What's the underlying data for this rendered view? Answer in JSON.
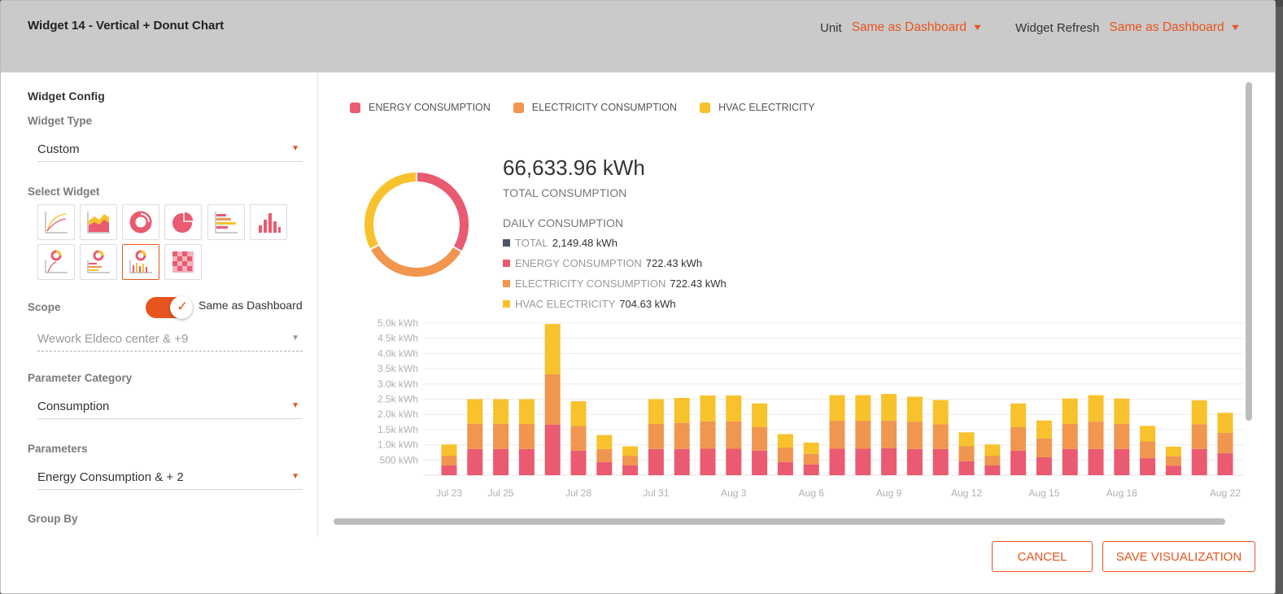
{
  "header": {
    "title": "Widget 14 - Vertical + Donut Chart",
    "unit_label": "Unit",
    "unit_value": "Same as Dashboard",
    "refresh_label": "Widget Refresh",
    "refresh_value": "Same as Dashboard"
  },
  "config": {
    "section_title": "Widget Config",
    "widget_type_label": "Widget Type",
    "widget_type_value": "Custom",
    "select_widget_label": "Select Widget",
    "widget_tiles": [
      "line-chart-icon",
      "area-chart-icon",
      "donut-chart-icon",
      "pie-chart-icon",
      "horizontal-bar-icon",
      "vertical-bar-icon",
      "donut-line-icon",
      "donut-horizontal-bar-icon",
      "donut-vertical-bar-icon",
      "heatmap-icon"
    ],
    "active_tile": 8,
    "scope_label": "Scope",
    "scope_toggle_on": true,
    "scope_toggle_text": "Same as Dashboard",
    "scope_value": "Wework Eldeco center & +9",
    "param_category_label": "Parameter Category",
    "param_category_value": "Consumption",
    "parameters_label": "Parameters",
    "parameters_value": "Energy Consumption & + 2",
    "group_by_label": "Group By"
  },
  "colors": {
    "accent": "#e8541e",
    "energy": "#ea5a70",
    "electricity": "#f0964f",
    "hvac": "#f7c22b",
    "total": "#4a5568"
  },
  "legend": [
    {
      "label": "ENERGY CONSUMPTION",
      "color": "#ea5a70"
    },
    {
      "label": "ELECTRICITY CONSUMPTION",
      "color": "#f0964f"
    },
    {
      "label": "HVAC ELECTRICITY",
      "color": "#f7c22b"
    }
  ],
  "summary": {
    "total_value": "66,633.96 kWh",
    "total_label": "TOTAL CONSUMPTION",
    "daily_label": "DAILY CONSUMPTION",
    "daily": [
      {
        "name": "TOTAL",
        "value": "2,149.48 kWh",
        "color": "#4a5568"
      },
      {
        "name": "ENERGY CONSUMPTION",
        "value": "722.43 kWh",
        "color": "#ea5a70"
      },
      {
        "name": "ELECTRICITY CONSUMPTION",
        "value": "722.43 kWh",
        "color": "#f0964f"
      },
      {
        "name": "HVAC ELECTRICITY",
        "value": "704.63 kWh",
        "color": "#f7c22b"
      }
    ]
  },
  "chart_data": [
    {
      "type": "pie",
      "donut": true,
      "labels": [
        "ENERGY CONSUMPTION",
        "ELECTRICITY CONSUMPTION",
        "HVAC ELECTRICITY"
      ],
      "values": [
        33.6,
        33.6,
        32.8
      ]
    },
    {
      "type": "bar",
      "stacked": true,
      "ylabel_unit": "kWh",
      "y_ticks": [
        "500 kWh",
        "1.0k kWh",
        "1.5k kWh",
        "2.0k kWh",
        "2.5k kWh",
        "3.0k kWh",
        "3.5k kWh",
        "4.0k kWh",
        "4.5k kWh",
        "5.0k kWh"
      ],
      "ylim": [
        0,
        5000
      ],
      "x_ticks": [
        {
          "label": "Jul 23",
          "index": 0
        },
        {
          "label": "Jul 25",
          "index": 2
        },
        {
          "label": "Jul 28",
          "index": 5
        },
        {
          "label": "Jul 31",
          "index": 8
        },
        {
          "label": "Aug 3",
          "index": 11
        },
        {
          "label": "Aug 6",
          "index": 14
        },
        {
          "label": "Aug 9",
          "index": 17
        },
        {
          "label": "Aug 12",
          "index": 20
        },
        {
          "label": "Aug 15",
          "index": 23
        },
        {
          "label": "Aug 18",
          "index": 26
        },
        {
          "label": "Aug 22",
          "index": 30
        }
      ],
      "grid": true,
      "series": [
        {
          "name": "ENERGY CONSUMPTION",
          "values": [
            320,
            860,
            860,
            860,
            1660,
            810,
            430,
            320,
            860,
            860,
            870,
            870,
            810,
            430,
            350,
            870,
            870,
            890,
            860,
            860,
            460,
            320,
            810,
            590,
            860,
            860,
            860,
            560,
            310,
            860,
            720
          ]
        },
        {
          "name": "ELECTRICITY CONSUMPTION",
          "values": [
            320,
            830,
            830,
            830,
            1660,
            810,
            430,
            320,
            830,
            860,
            900,
            900,
            770,
            480,
            350,
            920,
            920,
            900,
            890,
            810,
            500,
            320,
            770,
            620,
            830,
            900,
            830,
            550,
            310,
            810,
            670
          ]
        },
        {
          "name": "HVAC ELECTRICITY",
          "values": [
            370,
            810,
            810,
            810,
            1650,
            810,
            460,
            310,
            810,
            820,
            850,
            850,
            780,
            440,
            370,
            840,
            840,
            880,
            830,
            800,
            450,
            370,
            780,
            590,
            830,
            870,
            830,
            510,
            320,
            790,
            660
          ]
        }
      ]
    }
  ],
  "buttons": {
    "cancel": "CANCEL",
    "save": "SAVE VISUALIZATION"
  }
}
